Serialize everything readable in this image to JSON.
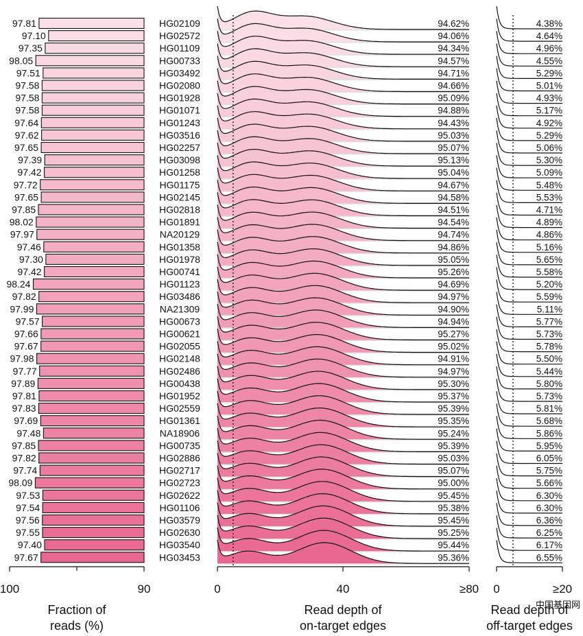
{
  "chart_data": {
    "type": "ridgeline",
    "panels": [
      {
        "name": "fraction",
        "type": "bar",
        "xlabel": [
          "Fraction of",
          "reads (%)"
        ],
        "xlim": [
          100,
          90
        ],
        "ticks": [
          "100",
          "90"
        ]
      },
      {
        "name": "on-target",
        "type": "density",
        "xlabel": [
          "Read depth of",
          "on-target edges"
        ],
        "xlim": [
          0,
          80
        ],
        "ticks": [
          "0",
          "40",
          "≥80"
        ],
        "dotted_cutoff": 5
      },
      {
        "name": "off-target",
        "type": "density",
        "xlabel": [
          "Read depth of",
          "off-target edges"
        ],
        "xlim": [
          0,
          20
        ],
        "ticks": [
          "0",
          "≥20"
        ],
        "dotted_cutoff": 5
      }
    ],
    "samples": [
      "HG02109",
      "HG02572",
      "HG01109",
      "HG00733",
      "HG03492",
      "HG02080",
      "HG01928",
      "HG01071",
      "HG01243",
      "HG03516",
      "HG02257",
      "HG03098",
      "HG01258",
      "HG01175",
      "HG02145",
      "HG02818",
      "HG01891",
      "NA20129",
      "HG01358",
      "HG01978",
      "HG00741",
      "HG01123",
      "HG03486",
      "NA21309",
      "HG00673",
      "HG00621",
      "HG02055",
      "HG02148",
      "HG02486",
      "HG00438",
      "HG01952",
      "HG02559",
      "HG01361",
      "NA18906",
      "HG00735",
      "HG02886",
      "HG02717",
      "HG02723",
      "HG02622",
      "HG01106",
      "HG03579",
      "HG02630",
      "HG03540",
      "HG03453"
    ],
    "fraction_values": [
      "97.81",
      "97.10",
      "97.35",
      "98.05",
      "97.51",
      "97.58",
      "97.58",
      "97.58",
      "97.64",
      "97.62",
      "97.65",
      "97.39",
      "97.42",
      "97.72",
      "97.65",
      "97.85",
      "98.02",
      "97.97",
      "97.46",
      "97.30",
      "97.42",
      "98.24",
      "97.82",
      "97.99",
      "97.57",
      "97.66",
      "97.67",
      "97.98",
      "97.77",
      "97.89",
      "97.81",
      "97.83",
      "97.69",
      "97.48",
      "97.85",
      "97.82",
      "97.74",
      "98.09",
      "97.53",
      "97.54",
      "97.56",
      "97.55",
      "97.40",
      "97.67"
    ],
    "on_target_pct": [
      "94.62%",
      "94.06%",
      "94.34%",
      "94.57%",
      "94.71%",
      "94.66%",
      "95.09%",
      "94.88%",
      "94.43%",
      "95.03%",
      "95.07%",
      "95.13%",
      "95.04%",
      "94.67%",
      "94.58%",
      "94.51%",
      "94.54%",
      "94.74%",
      "94.86%",
      "95.05%",
      "95.26%",
      "94.69%",
      "94.97%",
      "94.90%",
      "94.94%",
      "95.27%",
      "95.02%",
      "94.91%",
      "94.97%",
      "95.30%",
      "95.37%",
      "95.39%",
      "95.35%",
      "95.24%",
      "95.39%",
      "95.03%",
      "95.07%",
      "95.00%",
      "95.45%",
      "95.38%",
      "95.45%",
      "95.25%",
      "95.44%",
      "95.36%"
    ],
    "off_target_pct": [
      "4.38%",
      "4.64%",
      "4.96%",
      "4.55%",
      "5.29%",
      "5.01%",
      "4.93%",
      "5.17%",
      "4.92%",
      "5.29%",
      "5.06%",
      "5.30%",
      "5.09%",
      "5.48%",
      "5.53%",
      "4.71%",
      "4.89%",
      "4.86%",
      "5.16%",
      "5.65%",
      "5.58%",
      "5.20%",
      "5.59%",
      "5.11%",
      "5.77%",
      "5.73%",
      "5.78%",
      "5.50%",
      "5.44%",
      "5.80%",
      "5.73%",
      "5.81%",
      "5.68%",
      "5.86%",
      "5.95%",
      "6.05%",
      "5.75%",
      "5.66%",
      "6.30%",
      "6.30%",
      "6.36%",
      "6.25%",
      "6.17%",
      "6.55%"
    ],
    "colors": {
      "light": "#fbe0e8",
      "dark": "#e9688f",
      "line": "#111111",
      "shade": "#e0e0e0"
    }
  },
  "watermark": "中国基因网"
}
